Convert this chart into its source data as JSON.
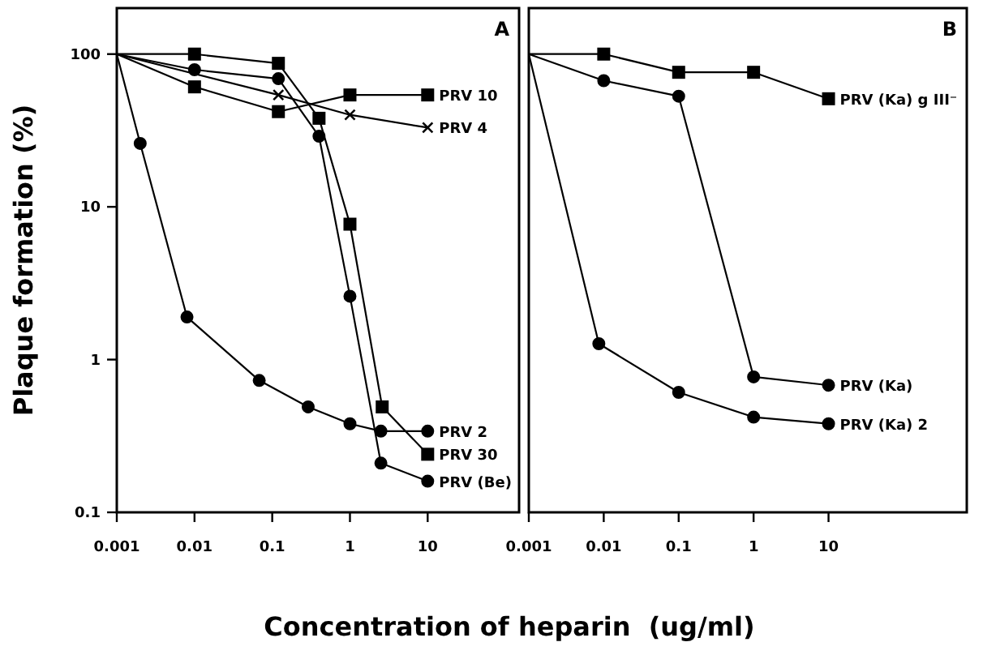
{
  "chart_data": [
    {
      "type": "line",
      "title": "A",
      "ylabel": "Plaque formation (%)",
      "xlabel": "Concentration of heparin  (ug/ml)",
      "log": "xy",
      "xlim": [
        0.001,
        150
      ],
      "ylim": [
        0.1,
        200
      ],
      "xticks": [
        0.001,
        0.01,
        0.1,
        1,
        10
      ],
      "yticks": [
        0.1,
        1,
        10,
        100
      ],
      "grid": false,
      "legend": false,
      "series": [
        {
          "name": "PRV 10",
          "color": "#000000",
          "marker": "square",
          "x": [
            0.001,
            0.01,
            0.12,
            1,
            10
          ],
          "values": [
            100,
            61,
            42,
            54,
            54
          ]
        },
        {
          "name": "PRV 4",
          "color": "#000000",
          "marker": "cross",
          "x": [
            0.001,
            0.12,
            1,
            10
          ],
          "values": [
            100,
            54,
            40,
            33
          ]
        },
        {
          "name": "PRV 2",
          "color": "#000000",
          "marker": "circle",
          "x": [
            0.001,
            0.002,
            0.008,
            0.068,
            0.29,
            1,
            2.5,
            10
          ],
          "values": [
            100,
            26,
            1.9,
            0.73,
            0.49,
            0.38,
            0.34,
            0.34
          ]
        },
        {
          "name": "PRV 30",
          "color": "#000000",
          "marker": "square",
          "x": [
            0.001,
            0.01,
            0.12,
            0.4,
            1,
            2.6,
            10
          ],
          "values": [
            100,
            100,
            87,
            38,
            7.7,
            0.49,
            0.24
          ]
        },
        {
          "name": "PRV (Be)",
          "color": "#000000",
          "marker": "circle",
          "x": [
            0.001,
            0.01,
            0.12,
            0.4,
            1,
            2.5,
            10
          ],
          "values": [
            100,
            79,
            69,
            29,
            2.6,
            0.21,
            0.16
          ]
        }
      ]
    },
    {
      "type": "line",
      "title": "B",
      "log": "xy",
      "xlim": [
        0.001,
        700
      ],
      "ylim": [
        0.1,
        200
      ],
      "xticks": [
        0.001,
        0.01,
        0.1,
        1,
        10
      ],
      "tick_labels": "x",
      "grid": false,
      "legend": false,
      "series": [
        {
          "name": "PRV (Ka) g III⁻",
          "color": "#000000",
          "marker": "square",
          "x": [
            0.001,
            0.01,
            0.1,
            1,
            10
          ],
          "values": [
            100,
            100,
            76,
            76,
            51
          ]
        },
        {
          "name": "PRV (Ka)",
          "color": "#000000",
          "marker": "circle",
          "x": [
            0.001,
            0.01,
            0.1,
            1,
            10
          ],
          "values": [
            100,
            67,
            53,
            0.77,
            0.68
          ]
        },
        {
          "name": "PRV (Ka) 2",
          "color": "#000000",
          "marker": "circle",
          "x": [
            0.001,
            0.0086,
            0.1,
            1,
            10
          ],
          "values": [
            100,
            1.27,
            0.61,
            0.42,
            0.38
          ]
        }
      ]
    }
  ]
}
